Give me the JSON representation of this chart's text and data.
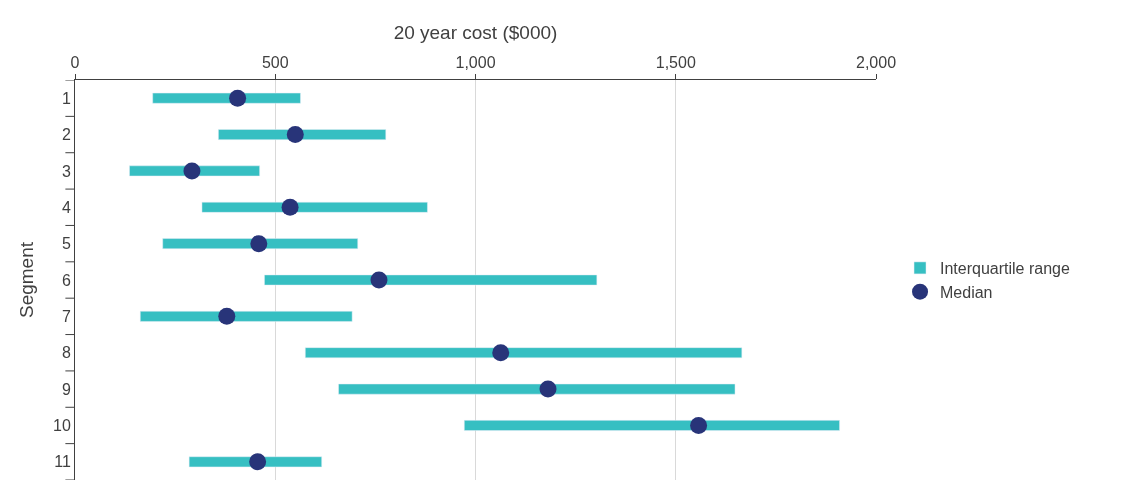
{
  "chart_data": {
    "type": "bar",
    "orientation": "horizontal",
    "xlabel": "20 year cost ($000)",
    "ylabel": "Segment",
    "categories": [
      "1",
      "2",
      "3",
      "4",
      "5",
      "6",
      "7",
      "8",
      "9",
      "10",
      "11"
    ],
    "series": [
      {
        "name": "Interquartile range",
        "color": "#36bfc2",
        "base": [
          194,
          358,
          136,
          317,
          219,
          473,
          163,
          575,
          658,
          972,
          285
        ],
        "values": [
          369,
          418,
          325,
          563,
          487,
          830,
          529,
          1090,
          990,
          937,
          331
        ]
      },
      {
        "name": "Median",
        "type": "scatter",
        "marker": "circle",
        "color": "#283479",
        "values": [
          406,
          550,
          292,
          537,
          459,
          759,
          379,
          1063,
          1181,
          1557,
          456
        ]
      }
    ],
    "xlim": [
      0,
      2000
    ],
    "xticks": [
      0,
      500,
      {
        "value": 1000,
        "label": "1,000"
      },
      {
        "value": 1500,
        "label": "1,500"
      },
      {
        "value": 2000,
        "label": "2,000"
      }
    ],
    "grid": "x",
    "legend": "right"
  }
}
